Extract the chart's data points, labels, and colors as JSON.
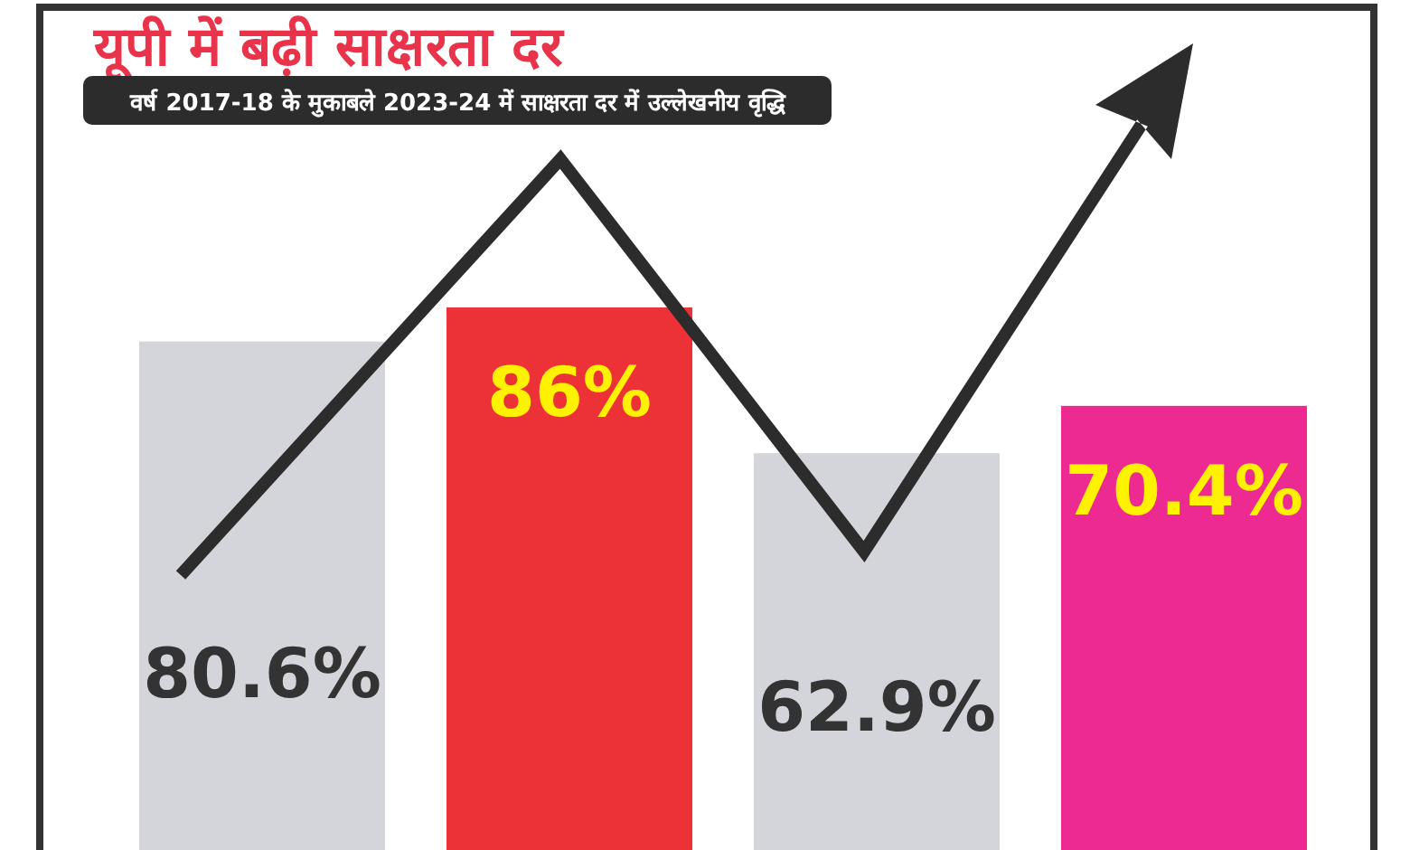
{
  "chart_data": {
    "type": "bar",
    "title": "यूपी में बढ़ी साक्षरता दर",
    "subtitle": "वर्ष 2017-18 के मुकाबले 2023-24 में साक्षरता दर में उल्लेखनीय वृद्धि",
    "categories": [
      null,
      null,
      null,
      null
    ],
    "values": [
      80.6,
      86,
      62.9,
      70.4
    ],
    "colors": [
      "#d3d5da",
      "#ec3237",
      "#d3d5da",
      "#ec2a92"
    ],
    "value_labels": [
      "80.6%",
      "86%",
      "62.9%",
      "70.4%"
    ]
  }
}
